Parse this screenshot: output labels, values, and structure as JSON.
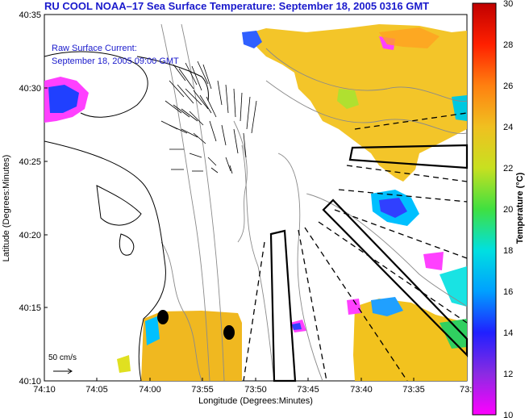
{
  "title": "RU COOL  NOAA–17  Sea Surface Temperature:  September 18, 2005 0316 GMT",
  "current_legend": {
    "line1": "Raw Surface Current:",
    "line2": "September 18, 2005 09:00 GMT"
  },
  "axes": {
    "xlabel": "Longitude (Degrees:Minutes)",
    "ylabel": "Latitude (Degrees:Minutes)",
    "xticks": [
      "74:10",
      "74:05",
      "74:00",
      "73:55",
      "73:50",
      "73:45",
      "73:40",
      "73:35",
      "73:3"
    ],
    "yticks": [
      "40:35",
      "40:30",
      "40:25",
      "40:20",
      "40:15",
      "40:10"
    ]
  },
  "colorbar": {
    "label": "Temperature (°C)",
    "ticks": [
      "30",
      "28",
      "26",
      "24",
      "22",
      "20",
      "18",
      "16",
      "14",
      "12",
      "10"
    ],
    "min": 10,
    "max": 30
  },
  "scale_arrow": {
    "label": "50 cm/s"
  },
  "colors": {
    "title_blue": "#1a1acc",
    "land_line": "#000000",
    "bathymetry": "#888888"
  }
}
